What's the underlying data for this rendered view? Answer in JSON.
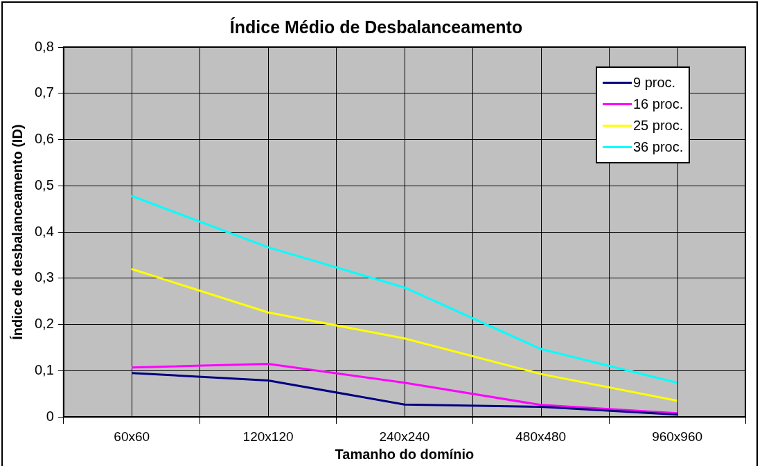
{
  "chart_data": {
    "type": "line",
    "title": "Índice Médio de Desbalanceamento",
    "xlabel": "Tamanho do domínio",
    "ylabel": "Índice de desbalanceamento (ID)",
    "categories": [
      "60x60",
      "120x120",
      "240x240",
      "480x480",
      "960x960"
    ],
    "series": [
      {
        "name": "9 proc.",
        "color": "#000080",
        "values": [
          0.095,
          0.079,
          0.027,
          0.022,
          0.005
        ]
      },
      {
        "name": "16 proc.",
        "color": "#ff00ff",
        "values": [
          0.107,
          0.115,
          0.074,
          0.026,
          0.008
        ]
      },
      {
        "name": "25 proc.",
        "color": "#ffff00",
        "values": [
          0.32,
          0.226,
          0.17,
          0.093,
          0.035
        ]
      },
      {
        "name": "36 proc.",
        "color": "#00ffff",
        "values": [
          0.478,
          0.367,
          0.28,
          0.147,
          0.074
        ]
      }
    ],
    "ylim": [
      0,
      0.8
    ],
    "yticks": [
      0,
      {
        "value": 0.1,
        "label": "0,1"
      },
      {
        "value": 0.2,
        "label": "0,2"
      },
      {
        "value": 0.3,
        "label": "0,3"
      },
      {
        "value": 0.4,
        "label": "0,4"
      },
      {
        "value": 0.5,
        "label": "0,5"
      },
      {
        "value": 0.6,
        "label": "0,6"
      },
      {
        "value": 0.7,
        "label": "0,7"
      },
      {
        "value": 0.8,
        "label": "0,8"
      }
    ],
    "grid": true,
    "legend": "top right",
    "marker": "none",
    "line_style": "solid"
  }
}
